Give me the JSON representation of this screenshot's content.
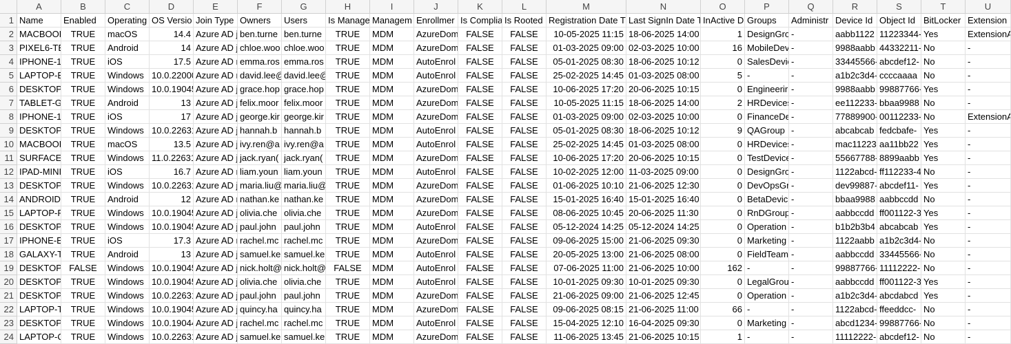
{
  "table": {
    "column_letters": [
      "A",
      "B",
      "C",
      "D",
      "E",
      "F",
      "G",
      "H",
      "I",
      "J",
      "K",
      "L",
      "M",
      "N",
      "O",
      "P",
      "Q",
      "R",
      "S",
      "T",
      "U"
    ],
    "row_numbers": [
      "1",
      "2",
      "3",
      "4",
      "5",
      "6",
      "7",
      "8",
      "9",
      "10",
      "11",
      "12",
      "13",
      "14",
      "15",
      "16",
      "17",
      "18",
      "19",
      "20",
      "21",
      "22",
      "23",
      "24"
    ],
    "rows": [
      [
        "Name",
        "Enabled",
        "Operating",
        "OS Versio",
        "Join Type",
        "Owners",
        "Users",
        "Is Manage",
        "Managem",
        "Enrollmer",
        "Is Complia",
        "Is Rooted",
        "Registration Date T",
        "Last SignIn Date T",
        "InActive D",
        "Groups",
        "Administr",
        "Device Id",
        "Object Id",
        "BitLocker",
        "Extension"
      ],
      [
        "MACBOOK",
        "TRUE",
        "macOS",
        "14.4",
        "Azure AD j",
        "ben.turne",
        "ben.turne",
        "TRUE",
        "MDM",
        "AzureDom",
        "FALSE",
        "FALSE",
        "10-05-2025 11:15",
        "18-06-2025 14:00",
        "1",
        "DesignGro",
        "-",
        "aabb1122",
        "11223344-",
        "Yes",
        "ExtensionA"
      ],
      [
        "PIXEL6-TE",
        "TRUE",
        "Android",
        "14",
        "Azure AD j",
        "chloe.woo",
        "chloe.woo",
        "TRUE",
        "MDM",
        "AzureDom",
        "FALSE",
        "FALSE",
        "01-03-2025 09:00",
        "02-03-2025 10:00",
        "16",
        "MobileDev",
        "-",
        "9988aabb",
        "44332211-",
        "No",
        "-"
      ],
      [
        "IPHONE-1:",
        "TRUE",
        "iOS",
        "17.5",
        "Azure AD r",
        "emma.ros",
        "emma.ros",
        "TRUE",
        "MDM",
        "AutoEnrol",
        "FALSE",
        "FALSE",
        "05-01-2025 08:30",
        "18-06-2025 10:12",
        "0",
        "SalesDevic",
        "-",
        "33445566-",
        "abcdef12-",
        "No",
        "-"
      ],
      [
        "LAPTOP-B:",
        "TRUE",
        "Windows",
        "10.0.22000",
        "Azure AD r",
        "david.lee@",
        "david.lee@",
        "TRUE",
        "MDM",
        "AutoEnrol",
        "FALSE",
        "FALSE",
        "25-02-2025 14:45",
        "01-03-2025 08:00",
        "5",
        "-",
        "-",
        "a1b2c3d4-",
        "ccccaaaa",
        "No",
        "-"
      ],
      [
        "DESKTOP-",
        "TRUE",
        "Windows",
        "10.0.19045",
        "Azure AD j",
        "grace.hop",
        "grace.hop",
        "TRUE",
        "MDM",
        "AzureDom",
        "FALSE",
        "FALSE",
        "10-06-2025 17:20",
        "20-06-2025 10:15",
        "0",
        "Engineerir",
        "-",
        "9988aabb",
        "99887766-",
        "Yes",
        "-"
      ],
      [
        "TABLET-GA",
        "TRUE",
        "Android",
        "13",
        "Azure AD j",
        "felix.moor",
        "felix.moor",
        "TRUE",
        "MDM",
        "AzureDom",
        "FALSE",
        "FALSE",
        "10-05-2025 11:15",
        "18-06-2025 14:00",
        "2",
        "HRDevices",
        "-",
        "ee112233-",
        "bbaa9988",
        "No",
        "-"
      ],
      [
        "IPHONE-1:",
        "TRUE",
        "iOS",
        "17",
        "Azure AD j",
        "george.kir",
        "george.kir",
        "TRUE",
        "MDM",
        "AzureDom",
        "FALSE",
        "FALSE",
        "01-03-2025 09:00",
        "02-03-2025 10:00",
        "0",
        "FinanceDe",
        "-",
        "77889900-",
        "00112233-",
        "No",
        "ExtensionA"
      ],
      [
        "DESKTOP-",
        "TRUE",
        "Windows",
        "10.0.22631",
        "Azure AD j",
        "hannah.b",
        "hannah.b",
        "TRUE",
        "MDM",
        "AutoEnrol",
        "FALSE",
        "FALSE",
        "05-01-2025 08:30",
        "18-06-2025 10:12",
        "9",
        "QAGroup",
        "-",
        "abcabcab",
        "fedcbafe-",
        "Yes",
        "-"
      ],
      [
        "MACBOOK",
        "TRUE",
        "macOS",
        "13.5",
        "Azure AD j",
        "ivy.ren@a",
        "ivy.ren@a",
        "TRUE",
        "MDM",
        "AutoEnrol",
        "FALSE",
        "FALSE",
        "25-02-2025 14:45",
        "01-03-2025 08:00",
        "0",
        "HRDevices",
        "-",
        "mac11223",
        "aa11bb22",
        "Yes",
        "-"
      ],
      [
        "SURFACE-T",
        "TRUE",
        "Windows",
        "11.0.22631",
        "Azure AD j",
        "jack.ryan(",
        "jack.ryan(",
        "TRUE",
        "MDM",
        "AzureDom",
        "FALSE",
        "FALSE",
        "10-06-2025 17:20",
        "20-06-2025 10:15",
        "0",
        "TestDevice",
        "-",
        "55667788-",
        "8899aabb",
        "Yes",
        "-"
      ],
      [
        "IPAD-MINI",
        "TRUE",
        "iOS",
        "16.7",
        "Azure AD r",
        "liam.youn",
        "liam.youn",
        "TRUE",
        "MDM",
        "AutoEnrol",
        "FALSE",
        "FALSE",
        "10-02-2025 12:00",
        "11-03-2025 09:00",
        "0",
        "DesignGro",
        "-",
        "1122abcd-",
        "ff112233-4",
        "No",
        "-"
      ],
      [
        "DESKTOP-",
        "TRUE",
        "Windows",
        "10.0.22631",
        "Azure AD j",
        "maria.liu@",
        "maria.liu@",
        "TRUE",
        "MDM",
        "AzureDom",
        "FALSE",
        "FALSE",
        "01-06-2025 10:10",
        "21-06-2025 12:30",
        "0",
        "DevOpsGr",
        "-",
        "dev99887-",
        "abcdef11-",
        "Yes",
        "-"
      ],
      [
        "ANDROID-",
        "TRUE",
        "Android",
        "12",
        "Azure AD r",
        "nathan.ke",
        "nathan.ke",
        "TRUE",
        "MDM",
        "AzureDom",
        "FALSE",
        "FALSE",
        "15-01-2025 16:40",
        "15-01-2025 16:40",
        "0",
        "BetaDevic",
        "-",
        "bbaa9988",
        "aabbccdd",
        "No",
        "-"
      ],
      [
        "LAPTOP-R",
        "TRUE",
        "Windows",
        "10.0.19045",
        "Azure AD j",
        "olivia.che",
        "olivia.che",
        "TRUE",
        "MDM",
        "AzureDom",
        "FALSE",
        "FALSE",
        "08-06-2025 10:45",
        "20-06-2025 11:30",
        "0",
        "RnDGroup",
        "-",
        "aabbccdd",
        "ff001122-3",
        "Yes",
        "-"
      ],
      [
        "DESKTOP-",
        "TRUE",
        "Windows",
        "10.0.19045",
        "Azure AD j",
        "paul.john",
        "paul.john",
        "TRUE",
        "MDM",
        "AutoEnrol",
        "FALSE",
        "FALSE",
        "05-12-2024 14:25",
        "05-12-2024 14:25",
        "0",
        "Operation",
        "-",
        "b1b2b3b4",
        "abcabcab",
        "Yes",
        "-"
      ],
      [
        "IPHONE-E",
        "TRUE",
        "iOS",
        "17.3",
        "Azure AD r",
        "rachel.mc",
        "rachel.mc",
        "TRUE",
        "MDM",
        "AzureDom",
        "FALSE",
        "FALSE",
        "09-06-2025 15:00",
        "21-06-2025 09:30",
        "0",
        "Marketing",
        "-",
        "1122aabb",
        "a1b2c3d4-",
        "No",
        "-"
      ],
      [
        "GALAXY-T",
        "TRUE",
        "Android",
        "13",
        "Azure AD j",
        "samuel.ke",
        "samuel.ke",
        "TRUE",
        "MDM",
        "AutoEnrol",
        "FALSE",
        "FALSE",
        "20-05-2025 13:00",
        "21-06-2025 08:00",
        "0",
        "FieldTeam",
        "-",
        "aabbccdd",
        "33445566-",
        "No",
        "-"
      ],
      [
        "DESKTOP-",
        "FALSE",
        "Windows",
        "10.0.19045",
        "Azure AD j",
        "nick.holt@",
        "nick.holt@",
        "FALSE",
        "MDM",
        "AutoEnrol",
        "FALSE",
        "FALSE",
        "07-06-2025 11:00",
        "21-06-2025 10:00",
        "162",
        "-",
        "-",
        "99887766-",
        "11112222-",
        "No",
        "-"
      ],
      [
        "DESKTOP-",
        "TRUE",
        "Windows",
        "10.0.19045",
        "Azure AD j",
        "olivia.che",
        "olivia.che",
        "TRUE",
        "MDM",
        "AutoEnrol",
        "FALSE",
        "FALSE",
        "10-01-2025 09:30",
        "10-01-2025 09:30",
        "0",
        "LegalGrou",
        "-",
        "aabbccdd",
        "ff001122-3",
        "Yes",
        "-"
      ],
      [
        "DESKTOP-",
        "TRUE",
        "Windows",
        "10.0.22631",
        "Azure AD j",
        "paul.john",
        "paul.john",
        "TRUE",
        "MDM",
        "AzureDom",
        "FALSE",
        "FALSE",
        "21-06-2025 09:00",
        "21-06-2025 12:45",
        "0",
        "Operation",
        "-",
        "a1b2c3d4-",
        "abcdabcd",
        "Yes",
        "-"
      ],
      [
        "LAPTOP-TI",
        "TRUE",
        "Windows",
        "10.0.19045",
        "Azure AD j",
        "quincy.ha",
        "quincy.ha",
        "TRUE",
        "MDM",
        "AzureDom",
        "FALSE",
        "FALSE",
        "09-06-2025 08:15",
        "21-06-2025 11:00",
        "66",
        "-",
        "-",
        "1122abcd-",
        "ffeeddcc-",
        "No",
        "-"
      ],
      [
        "DESKTOP-",
        "TRUE",
        "Windows",
        "10.0.19044",
        "Azure AD j",
        "rachel.mc",
        "rachel.mc",
        "TRUE",
        "MDM",
        "AutoEnrol",
        "FALSE",
        "FALSE",
        "15-04-2025 12:10",
        "16-04-2025 09:30",
        "0",
        "Marketing",
        "-",
        "abcd1234-",
        "99887766-",
        "No",
        "-"
      ],
      [
        "LAPTOP-Q",
        "TRUE",
        "Windows",
        "10.0.22631",
        "Azure AD j",
        "samuel.ke",
        "samuel.ke",
        "TRUE",
        "MDM",
        "AzureDom",
        "FALSE",
        "FALSE",
        "11-06-2025 13:45",
        "21-06-2025 10:15",
        "1",
        "-",
        "-",
        "11112222-",
        "abcdef12-",
        "No",
        "-"
      ]
    ]
  }
}
